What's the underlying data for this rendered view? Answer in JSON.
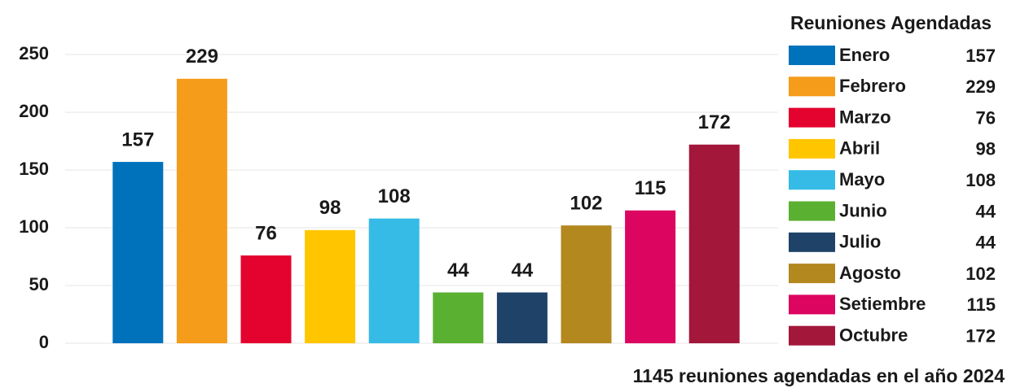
{
  "chart_data": {
    "type": "bar",
    "legend_title": "Reuniones Agendadas",
    "note": "1145 reuniones agendadas en el año 2024",
    "categories": [
      "Enero",
      "Febrero",
      "Marzo",
      "Abril",
      "Mayo",
      "Junio",
      "Julio",
      "Agosto",
      "Setiembre",
      "Octubre"
    ],
    "values": [
      157,
      229,
      76,
      98,
      108,
      44,
      44,
      102,
      115,
      172
    ],
    "colors": [
      "#0072bc",
      "#f59c1a",
      "#e4032e",
      "#ffc600",
      "#36bbe6",
      "#5ab031",
      "#1e4268",
      "#b3881e",
      "#dc0560",
      "#a3173b"
    ],
    "ylim": [
      0,
      250
    ],
    "yticks": [
      0,
      50,
      100,
      150,
      200,
      250
    ],
    "grid": true,
    "legend": "right"
  }
}
